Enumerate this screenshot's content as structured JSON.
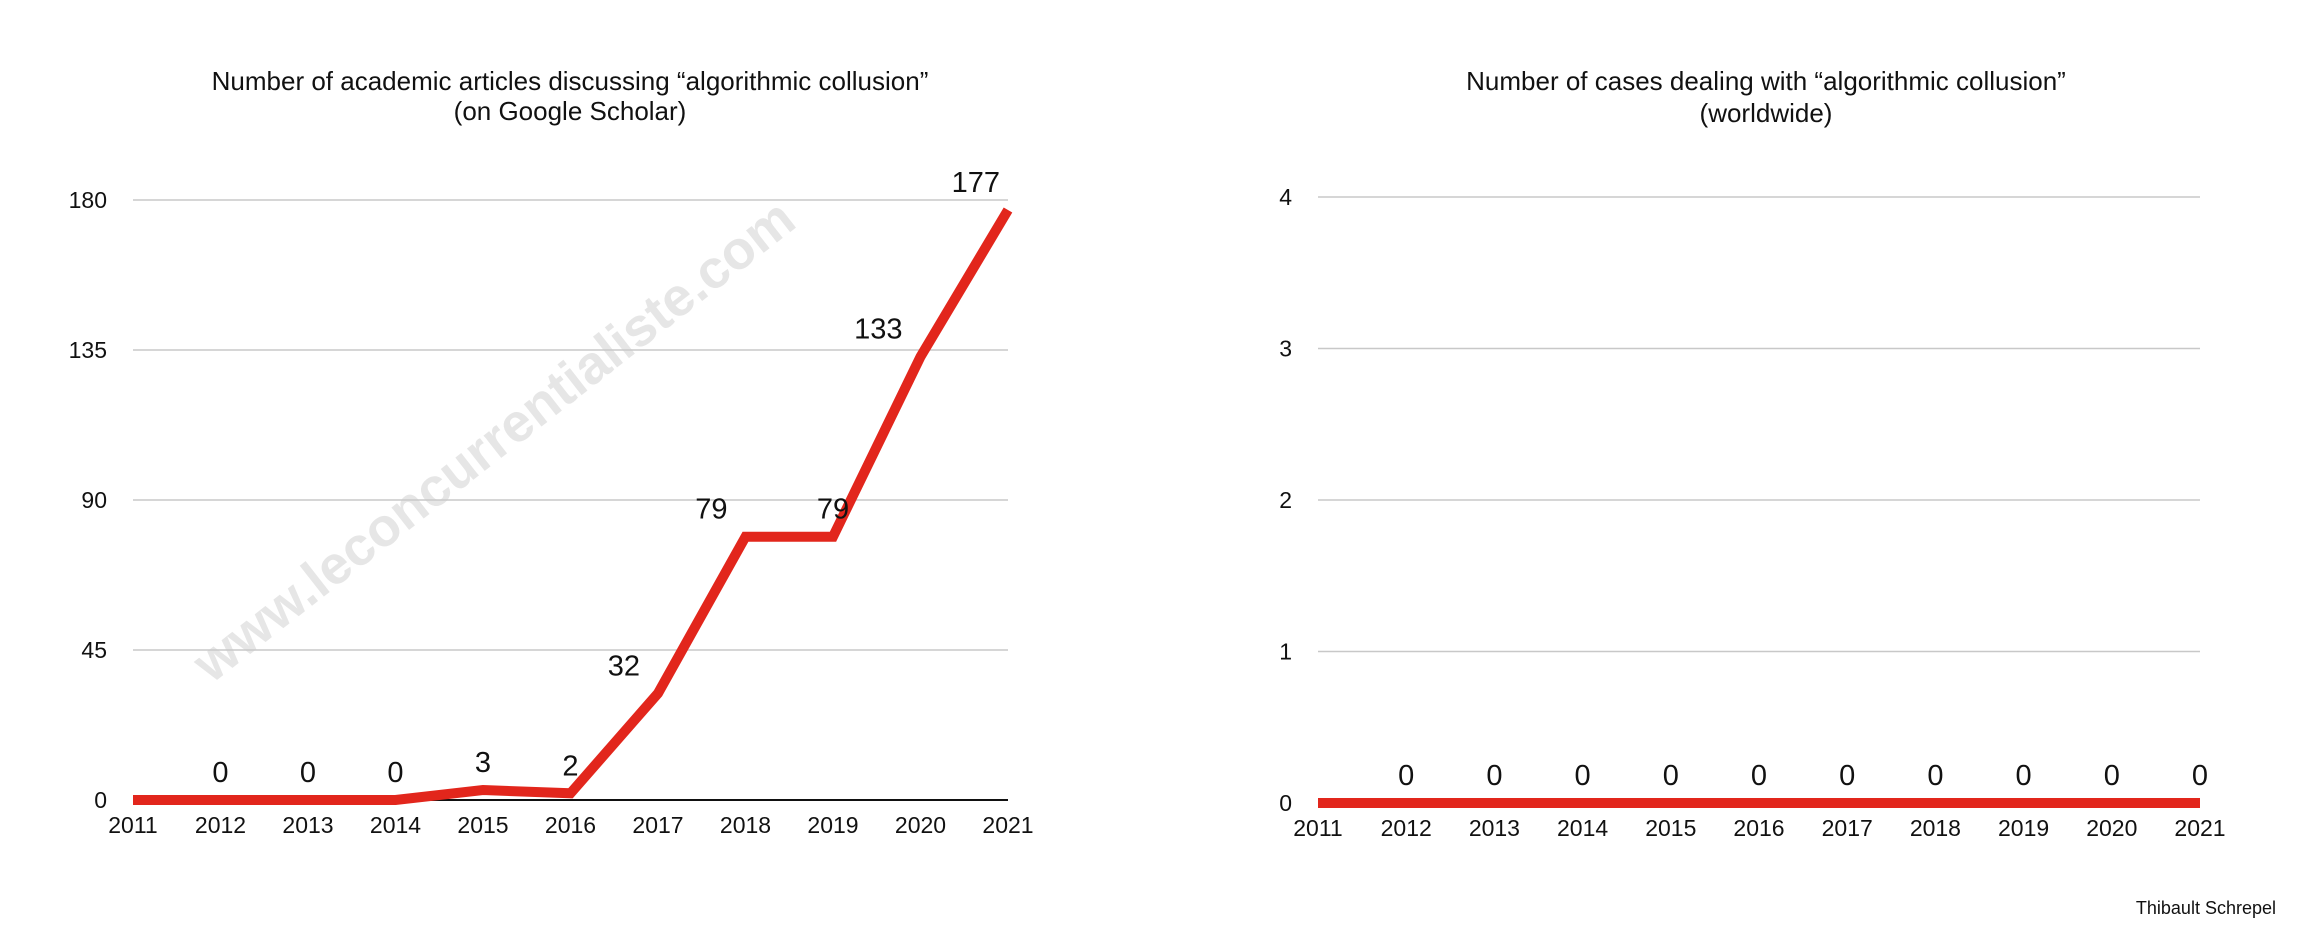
{
  "chart_data": [
    {
      "type": "line",
      "title": "Number of academic articles discussing “algorithmic collusion”",
      "subtitle": "(on Google Scholar)",
      "x": [
        "2011",
        "2012",
        "2013",
        "2014",
        "2015",
        "2016",
        "2017",
        "2018",
        "2019",
        "2020",
        "2021"
      ],
      "series": [
        {
          "values": [
            0,
            0,
            0,
            0,
            3,
            2,
            32,
            79,
            79,
            133,
            177
          ]
        }
      ],
      "data_labels": [
        "",
        "0",
        "0",
        "0",
        "3",
        "2",
        "32",
        "79",
        "79",
        "133",
        "177"
      ],
      "yticks": [
        "0",
        "45",
        "90",
        "135",
        "180"
      ],
      "ylim": [
        0,
        180
      ],
      "grid": true,
      "color": "#e2261c"
    },
    {
      "type": "line",
      "title": "Number of cases dealing with “algorithmic collusion”",
      "subtitle": "(worldwide)",
      "x": [
        "2011",
        "2012",
        "2013",
        "2014",
        "2015",
        "2016",
        "2017",
        "2018",
        "2019",
        "2020",
        "2021"
      ],
      "series": [
        {
          "values": [
            0,
            0,
            0,
            0,
            0,
            0,
            0,
            0,
            0,
            0,
            0
          ]
        }
      ],
      "data_labels": [
        "",
        "0",
        "0",
        "0",
        "0",
        "0",
        "0",
        "0",
        "0",
        "0",
        "0"
      ],
      "yticks": [
        "0",
        "1",
        "2",
        "3",
        "4"
      ],
      "ylim": [
        0,
        4
      ],
      "grid": true,
      "color": "#e2261c"
    }
  ],
  "watermark": "www.leconcurrentialiste.com",
  "credit": "Thibault Schrepel"
}
